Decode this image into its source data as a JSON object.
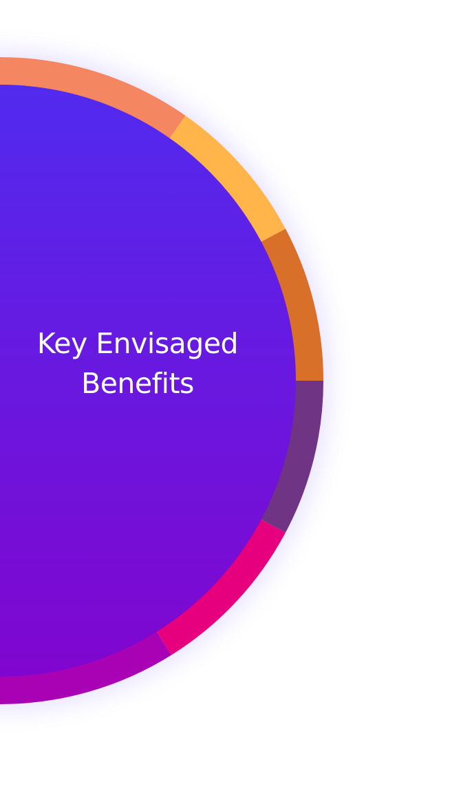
{
  "hub": {
    "title_line1": "Key Envisaged",
    "title_line2": "Benefits",
    "gradient_top": "#522AEF",
    "gradient_bottom": "#8006CF"
  },
  "ring_segments": [
    {
      "id": "segment-1",
      "color": "#F58662"
    },
    {
      "id": "segment-2",
      "color": "#FFB549"
    },
    {
      "id": "segment-3",
      "color": "#D9702A"
    },
    {
      "id": "segment-4",
      "color": "#6F3584"
    },
    {
      "id": "segment-5",
      "color": "#E6007E"
    },
    {
      "id": "segment-6",
      "color": "#A902B4"
    }
  ],
  "glow_color": "#7A5CFF"
}
